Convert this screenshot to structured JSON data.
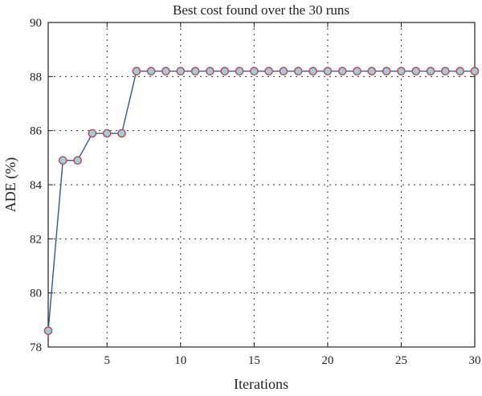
{
  "chart_data": {
    "type": "line",
    "title": "Best cost found over the 30 runs",
    "xlabel": "Iterations",
    "ylabel": "ADE (%)",
    "xlim": [
      1,
      30
    ],
    "ylim": [
      78,
      90
    ],
    "xticks": [
      5,
      10,
      15,
      20,
      25,
      30
    ],
    "yticks": [
      78,
      80,
      82,
      84,
      86,
      88,
      90
    ],
    "grid": true,
    "marker": "circle",
    "colors": {
      "line": "#2f55a4",
      "marker_fill": "#8fd3e6",
      "marker_edge": "#e03a3a"
    },
    "series": [
      {
        "x": [
          1,
          2,
          3,
          4,
          5,
          6,
          7,
          8,
          9,
          10,
          11,
          12,
          13,
          14,
          15,
          16,
          17,
          18,
          19,
          20,
          21,
          22,
          23,
          24,
          25,
          26,
          27,
          28,
          29,
          30
        ],
        "values": [
          78.6,
          84.9,
          84.9,
          85.9,
          85.9,
          85.9,
          88.2,
          88.2,
          88.2,
          88.2,
          88.2,
          88.2,
          88.2,
          88.2,
          88.2,
          88.2,
          88.2,
          88.2,
          88.2,
          88.2,
          88.2,
          88.2,
          88.2,
          88.2,
          88.2,
          88.2,
          88.2,
          88.2,
          88.2,
          88.2
        ]
      }
    ]
  }
}
